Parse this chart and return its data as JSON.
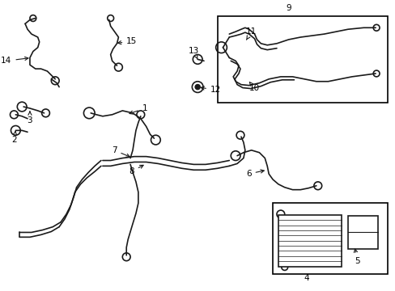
{
  "background_color": "#ffffff",
  "line_color": "#1a1a1a",
  "label_color": "#000000",
  "box_color": "#000000",
  "figsize": [
    4.89,
    3.6
  ],
  "dpi": 100
}
